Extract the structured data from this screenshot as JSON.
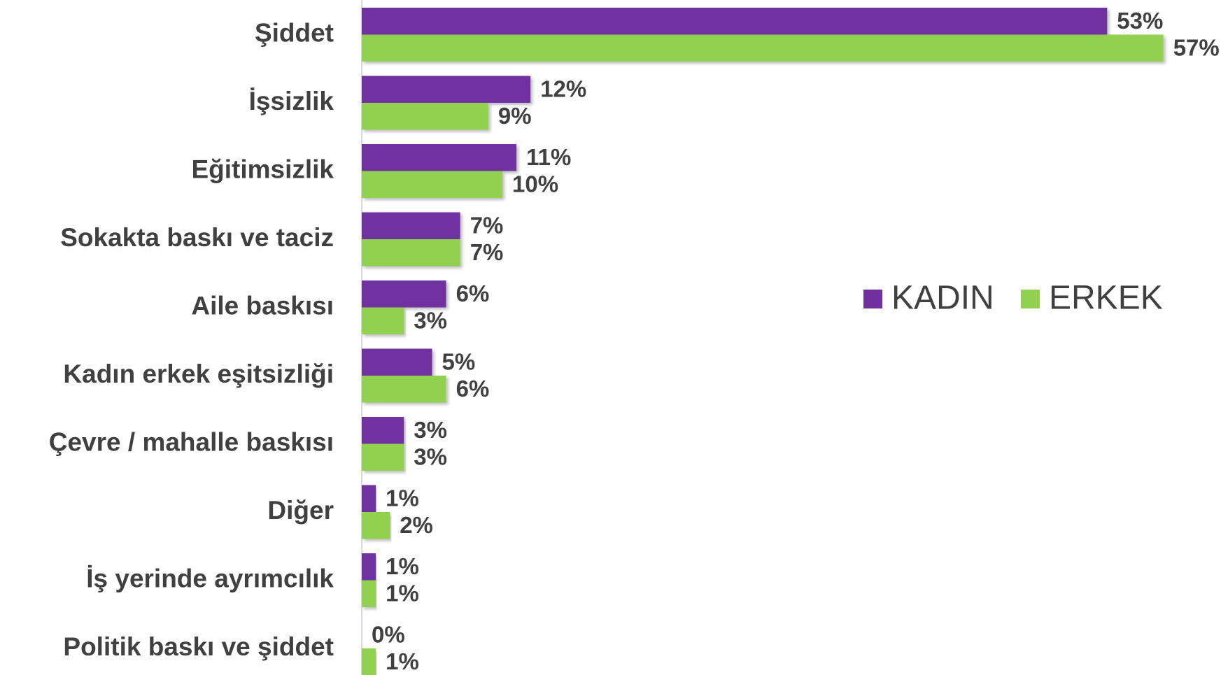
{
  "chart_data": {
    "type": "bar",
    "orientation": "horizontal",
    "categories": [
      "Şiddet",
      "İşsizlik",
      "Eğitimsizlik",
      "Sokakta baskı ve taciz",
      "Aile baskısı",
      "Kadın erkek eşitsizliği",
      "Çevre / mahalle baskısı",
      "Diğer",
      "İş yerinde ayrımcılık",
      "Politik baskı ve şiddet"
    ],
    "series": [
      {
        "name": "KADIN",
        "color": "#7030a0",
        "values": [
          53,
          12,
          11,
          7,
          6,
          5,
          3,
          1,
          1,
          0
        ],
        "value_labels": [
          "53%",
          "12%",
          "11%",
          "7%",
          "6%",
          "5%",
          "3%",
          "1%",
          "1%",
          "0%"
        ]
      },
      {
        "name": "ERKEK",
        "color": "#92d050",
        "values": [
          57,
          9,
          10,
          7,
          3,
          6,
          3,
          2,
          1,
          1
        ],
        "value_labels": [
          "57%",
          "9%",
          "10%",
          "7%",
          "3%",
          "6%",
          "3%",
          "2%",
          "1%",
          "1%"
        ]
      }
    ],
    "legend": "right"
  }
}
